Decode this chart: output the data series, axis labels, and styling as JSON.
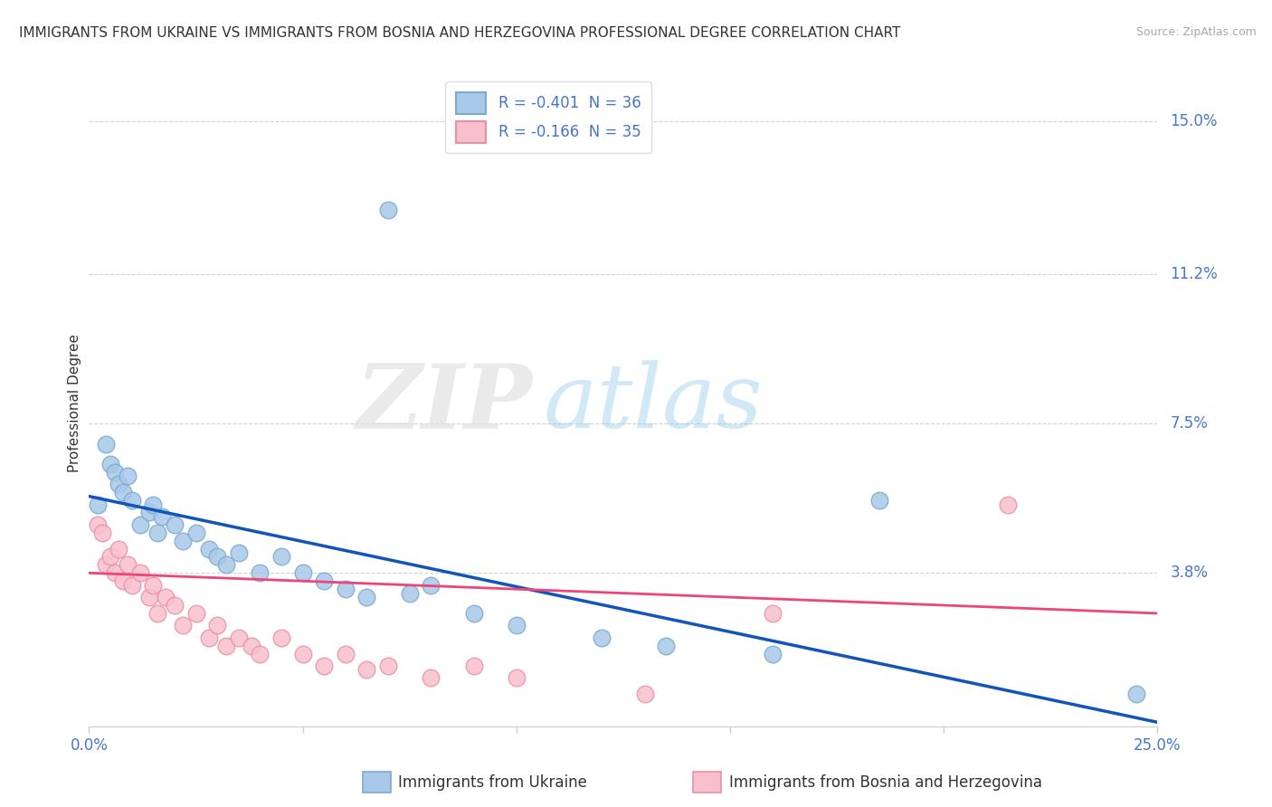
{
  "title": "IMMIGRANTS FROM UKRAINE VS IMMIGRANTS FROM BOSNIA AND HERZEGOVINA PROFESSIONAL DEGREE CORRELATION CHART",
  "source": "Source: ZipAtlas.com",
  "xlabel_ukraine": "Immigrants from Ukraine",
  "xlabel_bosnia": "Immigrants from Bosnia and Herzegovina",
  "ylabel": "Professional Degree",
  "xlim": [
    0.0,
    0.25
  ],
  "ylim": [
    0.0,
    0.16
  ],
  "yticks": [
    0.038,
    0.075,
    0.112,
    0.15
  ],
  "ytick_labels": [
    "3.8%",
    "7.5%",
    "11.2%",
    "15.0%"
  ],
  "ukraine_R": -0.401,
  "ukraine_N": 36,
  "bosnia_R": -0.166,
  "bosnia_N": 35,
  "ukraine_color": "#A8C8E8",
  "ukraine_edge_color": "#7AAAD0",
  "bosnia_color": "#F8C0CC",
  "bosnia_edge_color": "#E890A8",
  "trendline_ukraine_color": "#1155BB",
  "trendline_bosnia_color": "#EE4477",
  "watermark_zip_color": "#DDDDDD",
  "watermark_atlas_color": "#AACCEE",
  "background_color": "#FFFFFF",
  "grid_color": "#CCCCCC",
  "axis_label_color": "#4477CC",
  "text_color": "#333333",
  "legend_text_color": "#4477CC",
  "title_fontsize": 11,
  "ukraine_x": [
    0.002,
    0.004,
    0.005,
    0.006,
    0.007,
    0.008,
    0.009,
    0.01,
    0.012,
    0.014,
    0.015,
    0.016,
    0.017,
    0.02,
    0.022,
    0.025,
    0.028,
    0.03,
    0.032,
    0.035,
    0.04,
    0.045,
    0.05,
    0.055,
    0.06,
    0.065,
    0.07,
    0.075,
    0.08,
    0.09,
    0.1,
    0.12,
    0.135,
    0.16,
    0.185,
    0.245
  ],
  "ukraine_y": [
    0.055,
    0.07,
    0.065,
    0.063,
    0.06,
    0.058,
    0.062,
    0.056,
    0.05,
    0.053,
    0.055,
    0.048,
    0.052,
    0.05,
    0.046,
    0.048,
    0.044,
    0.042,
    0.04,
    0.043,
    0.038,
    0.042,
    0.038,
    0.036,
    0.034,
    0.032,
    0.128,
    0.033,
    0.035,
    0.028,
    0.025,
    0.022,
    0.02,
    0.018,
    0.056,
    0.008
  ],
  "bosnia_x": [
    0.002,
    0.003,
    0.004,
    0.005,
    0.006,
    0.007,
    0.008,
    0.009,
    0.01,
    0.012,
    0.014,
    0.015,
    0.016,
    0.018,
    0.02,
    0.022,
    0.025,
    0.028,
    0.03,
    0.032,
    0.035,
    0.038,
    0.04,
    0.045,
    0.05,
    0.055,
    0.06,
    0.065,
    0.07,
    0.08,
    0.09,
    0.1,
    0.13,
    0.16,
    0.215
  ],
  "bosnia_y": [
    0.05,
    0.048,
    0.04,
    0.042,
    0.038,
    0.044,
    0.036,
    0.04,
    0.035,
    0.038,
    0.032,
    0.035,
    0.028,
    0.032,
    0.03,
    0.025,
    0.028,
    0.022,
    0.025,
    0.02,
    0.022,
    0.02,
    0.018,
    0.022,
    0.018,
    0.015,
    0.018,
    0.014,
    0.015,
    0.012,
    0.015,
    0.012,
    0.008,
    0.028,
    0.055
  ],
  "trend_ukraine_x0": 0.0,
  "trend_ukraine_y0": 0.057,
  "trend_ukraine_x1": 0.25,
  "trend_ukraine_y1": 0.001,
  "trend_bosnia_x0": 0.0,
  "trend_bosnia_y0": 0.038,
  "trend_bosnia_x1": 0.25,
  "trend_bosnia_y1": 0.028
}
